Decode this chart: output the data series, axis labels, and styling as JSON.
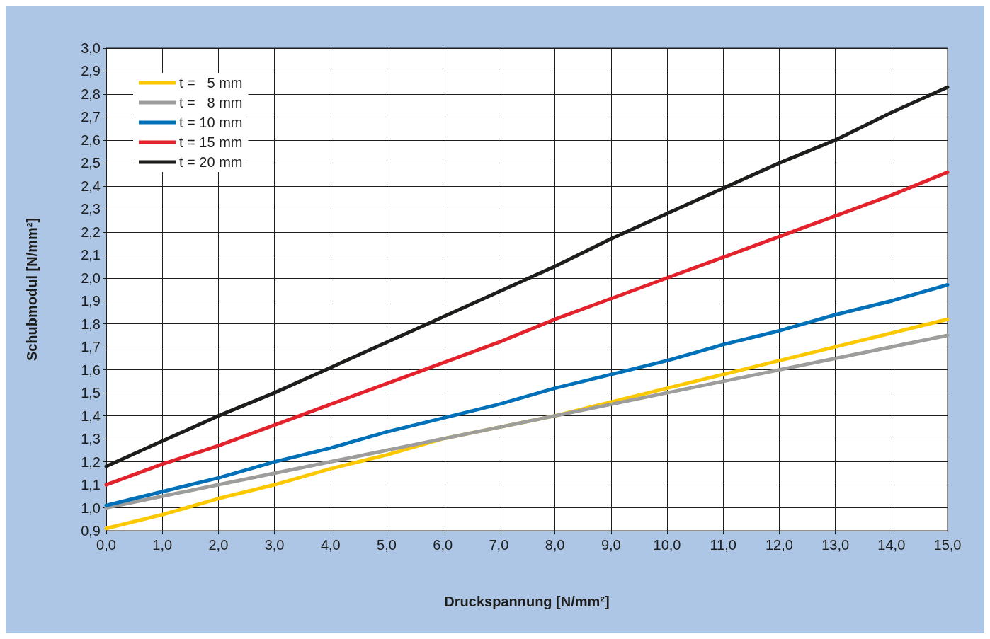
{
  "chart_data": {
    "type": "line",
    "xlabel": "Druckspannung [N/mm²]",
    "ylabel": "Schubmodul [N/mm²]",
    "x": [
      0,
      1,
      2,
      3,
      4,
      5,
      6,
      7,
      8,
      9,
      10,
      11,
      12,
      13,
      14,
      15
    ],
    "series": [
      {
        "name": "t =   5 mm",
        "color": "#fcc800",
        "values": [
          0.91,
          0.97,
          1.04,
          1.1,
          1.17,
          1.23,
          1.3,
          1.35,
          1.4,
          1.46,
          1.52,
          1.58,
          1.64,
          1.7,
          1.76,
          1.82
        ]
      },
      {
        "name": "t =   8 mm",
        "color": "#9d9d9c",
        "values": [
          1.0,
          1.05,
          1.1,
          1.15,
          1.2,
          1.25,
          1.3,
          1.35,
          1.4,
          1.45,
          1.5,
          1.55,
          1.6,
          1.65,
          1.7,
          1.75
        ]
      },
      {
        "name": "t = 10 mm",
        "color": "#0070b8",
        "values": [
          1.01,
          1.07,
          1.13,
          1.2,
          1.26,
          1.33,
          1.39,
          1.45,
          1.52,
          1.58,
          1.64,
          1.71,
          1.77,
          1.84,
          1.9,
          1.97
        ]
      },
      {
        "name": "t = 15 mm",
        "color": "#e3222b",
        "values": [
          1.1,
          1.19,
          1.27,
          1.36,
          1.45,
          1.54,
          1.63,
          1.72,
          1.82,
          1.91,
          2.0,
          2.09,
          2.18,
          2.27,
          2.36,
          2.46
        ]
      },
      {
        "name": "t = 20 mm",
        "color": "#1d1d1b",
        "values": [
          1.18,
          1.29,
          1.4,
          1.5,
          1.61,
          1.72,
          1.83,
          1.94,
          2.05,
          2.17,
          2.28,
          2.39,
          2.5,
          2.6,
          2.72,
          2.83
        ]
      }
    ],
    "xlim": [
      0,
      15
    ],
    "xticks": [
      {
        "value": 0,
        "label": "0,0"
      },
      {
        "value": 1,
        "label": "1,0"
      },
      {
        "value": 2,
        "label": "2,0"
      },
      {
        "value": 3,
        "label": "3,0"
      },
      {
        "value": 4,
        "label": "4,0"
      },
      {
        "value": 5,
        "label": "5,0"
      },
      {
        "value": 6,
        "label": "6,0"
      },
      {
        "value": 7,
        "label": "7,0"
      },
      {
        "value": 8,
        "label": "8,0"
      },
      {
        "value": 9,
        "label": "9,0"
      },
      {
        "value": 10,
        "label": "10,0"
      },
      {
        "value": 11,
        "label": "11,0"
      },
      {
        "value": 12,
        "label": "12,0"
      },
      {
        "value": 13,
        "label": "13,0"
      },
      {
        "value": 14,
        "label": "14,0"
      },
      {
        "value": 15,
        "label": "15,0"
      }
    ],
    "ylim": [
      0.9,
      3.0
    ],
    "yticks": [
      {
        "value": 0.9,
        "label": "0,9"
      },
      {
        "value": 1.0,
        "label": "1,0"
      },
      {
        "value": 1.1,
        "label": "1,1"
      },
      {
        "value": 1.2,
        "label": "1,2"
      },
      {
        "value": 1.3,
        "label": "1,3"
      },
      {
        "value": 1.4,
        "label": "1,4"
      },
      {
        "value": 1.5,
        "label": "1,5"
      },
      {
        "value": 1.6,
        "label": "1,6"
      },
      {
        "value": 1.7,
        "label": "1,7"
      },
      {
        "value": 1.8,
        "label": "1,8"
      },
      {
        "value": 1.9,
        "label": "1,9"
      },
      {
        "value": 2.0,
        "label": "2,0"
      },
      {
        "value": 2.1,
        "label": "2,1"
      },
      {
        "value": 2.2,
        "label": "2,2"
      },
      {
        "value": 2.3,
        "label": "2,3"
      },
      {
        "value": 2.4,
        "label": "2,4"
      },
      {
        "value": 2.5,
        "label": "2,5"
      },
      {
        "value": 2.6,
        "label": "2,6"
      },
      {
        "value": 2.7,
        "label": "2,7"
      },
      {
        "value": 2.8,
        "label": "2,8"
      },
      {
        "value": 2.9,
        "label": "2,9"
      },
      {
        "value": 3.0,
        "label": "3,0"
      }
    ],
    "grid": true,
    "legend": "top left",
    "marker": "none",
    "line_style": "solid"
  }
}
